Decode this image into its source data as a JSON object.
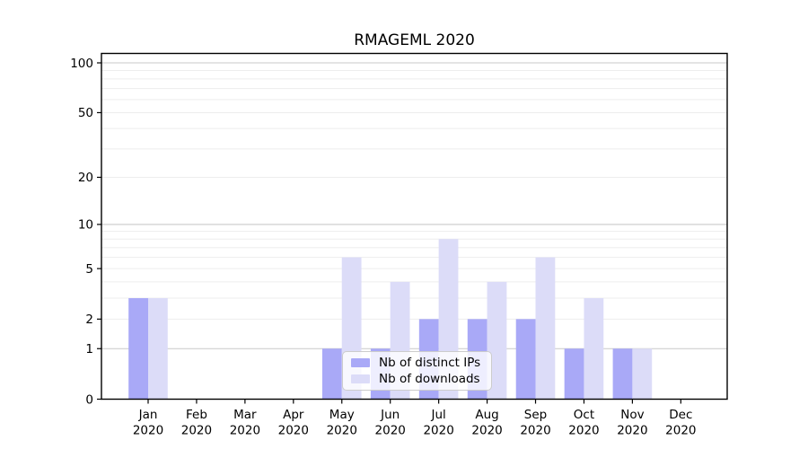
{
  "title": "RMAGEML 2020",
  "legend": {
    "items": [
      {
        "label": "Nb of distinct IPs"
      },
      {
        "label": "Nb of downloads"
      }
    ]
  },
  "colors": {
    "distinct_ips_bar": "#a9a9f7",
    "downloads_bar": "#dcdcf8",
    "major_gridline": "#c9c9c9",
    "minor_gridline": "#ededed",
    "axis": "#000000",
    "text": "#000000"
  },
  "chart_data": {
    "type": "bar",
    "title": "RMAGEML 2020",
    "categories": [
      "Jan",
      "Feb",
      "Mar",
      "Apr",
      "May",
      "Jun",
      "Jul",
      "Aug",
      "Sep",
      "Oct",
      "Nov",
      "Dec"
    ],
    "x_tick_year": "2020",
    "series": [
      {
        "name": "Nb of distinct IPs",
        "color": "#a9a9f7",
        "values": [
          3,
          0,
          0,
          0,
          1,
          1,
          2,
          2,
          2,
          1,
          1,
          0
        ]
      },
      {
        "name": "Nb of downloads",
        "color": "#dcdcf8",
        "values": [
          3,
          0,
          0,
          0,
          6,
          4,
          8,
          4,
          6,
          3,
          1,
          0
        ]
      }
    ],
    "y_axis": {
      "scale": "log1p",
      "tick_values": [
        0,
        1,
        2,
        5,
        10,
        20,
        50,
        100
      ],
      "tick_labels": [
        "0",
        "1",
        "2",
        "5",
        "10",
        "20",
        "50",
        "100"
      ],
      "major_gridlines": [
        1,
        10,
        100
      ],
      "minor_gridlines": [
        2,
        3,
        4,
        5,
        6,
        7,
        8,
        9,
        20,
        30,
        40,
        50,
        60,
        70,
        80,
        90
      ],
      "range": [
        0,
        100
      ]
    },
    "legend_position": "lower-center",
    "grid": true
  }
}
